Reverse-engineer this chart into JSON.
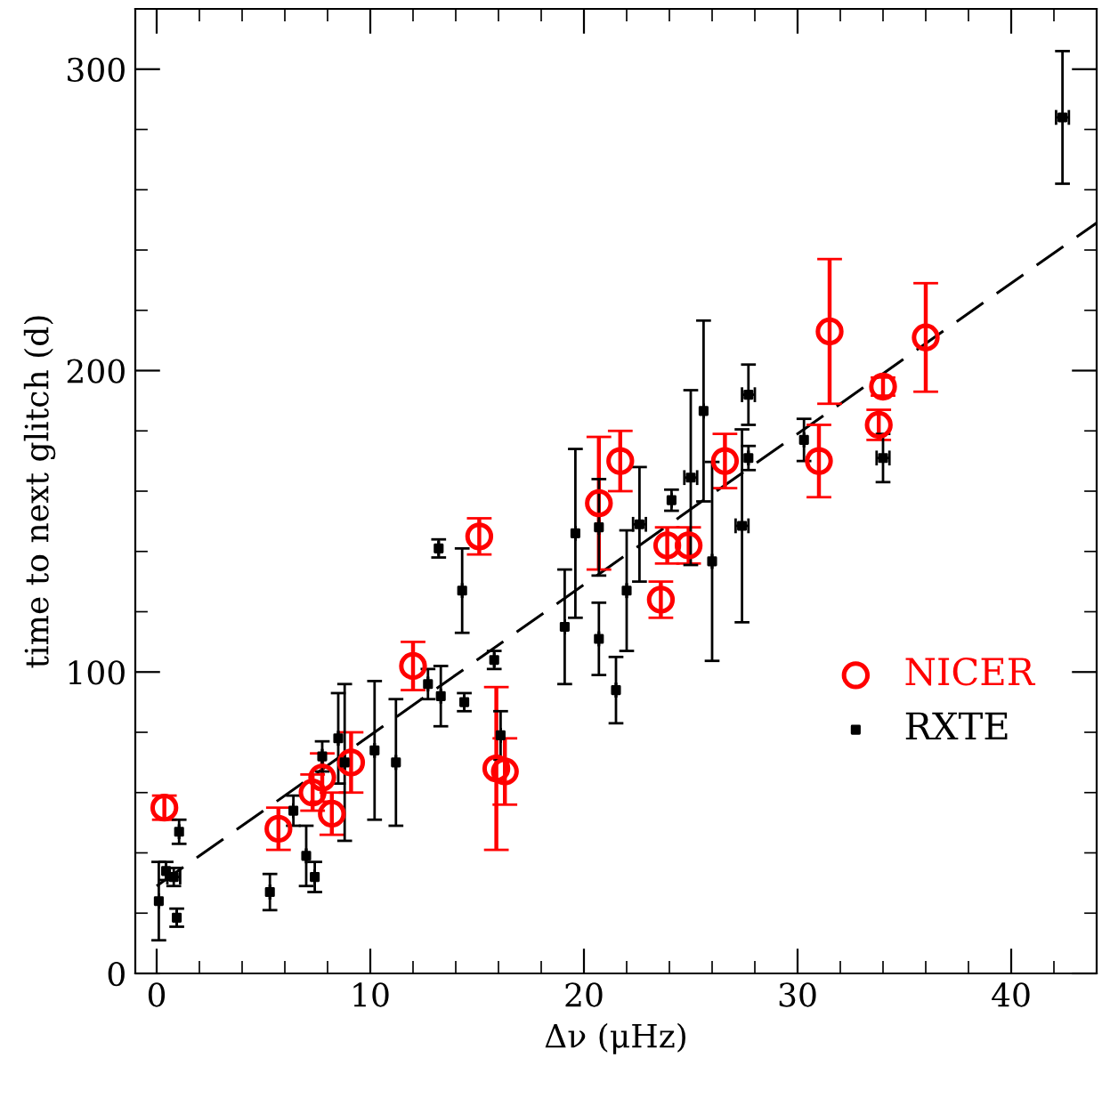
{
  "chart_data": {
    "type": "scatter",
    "xlabel": "Δν (μHz)",
    "ylabel": "time to next glitch (d)",
    "xlim": [
      -1,
      44
    ],
    "ylim": [
      0,
      320
    ],
    "xticks": [
      0,
      10,
      20,
      30,
      40
    ],
    "yticks": [
      0,
      100,
      200,
      300
    ],
    "grid": false,
    "legend": "lower right",
    "series": [
      {
        "name": "NICER",
        "color": "#ff0000",
        "marker": "circle",
        "x": [
          0.36,
          5.7,
          7.3,
          7.75,
          8.2,
          9.1,
          12.0,
          15.1,
          15.9,
          16.3,
          20.7,
          21.7,
          23.6,
          23.9,
          24.9,
          26.6,
          31.0,
          31.5,
          34.0,
          33.8,
          36.0
        ],
        "values": [
          55,
          48,
          60,
          65,
          53,
          70,
          102,
          145,
          68,
          67,
          156,
          170,
          124,
          142,
          142,
          170,
          170,
          213,
          194.7,
          182,
          211
        ],
        "errors": [
          4,
          7,
          6,
          8,
          7,
          10,
          8,
          6,
          27,
          11,
          22,
          10,
          6,
          6,
          6,
          9,
          12,
          24,
          3,
          5,
          18
        ]
      },
      {
        "name": "RXTE",
        "color": "#000000",
        "marker": "square",
        "x": [
          0.1,
          0.44,
          0.8,
          0.94,
          1.05,
          5.3,
          6.4,
          7.0,
          7.4,
          7.75,
          8.5,
          8.8,
          10.2,
          11.2,
          12.7,
          13.2,
          13.3,
          14.3,
          14.4,
          15.8,
          16.1,
          19.1,
          19.6,
          20.7,
          20.7,
          21.5,
          22.0,
          22.6,
          24.1,
          25.0,
          25.6,
          26.0,
          27.4,
          27.7,
          27.7,
          30.3,
          34.0,
          42.4
        ],
        "values": [
          24,
          34,
          32,
          18.5,
          47,
          27,
          54,
          39,
          32,
          72,
          78,
          70,
          74,
          70,
          96,
          141,
          92,
          127,
          90,
          104,
          79,
          115,
          146,
          111,
          148,
          94,
          127,
          149,
          157,
          164.5,
          186.6,
          136.7,
          148.5,
          171,
          192,
          177,
          171,
          284
        ],
        "errors": [
          13,
          3,
          3,
          3,
          4,
          6,
          5,
          10,
          5,
          5,
          15,
          26,
          23,
          21,
          5,
          3,
          10,
          14,
          3,
          3,
          8,
          19,
          28,
          12,
          16,
          11,
          20,
          19,
          3.5,
          29,
          30,
          33,
          32,
          4,
          10,
          7,
          8,
          22
        ],
        "xerrors": [
          null,
          null,
          0.3,
          null,
          null,
          null,
          null,
          null,
          null,
          null,
          null,
          null,
          null,
          null,
          null,
          null,
          null,
          null,
          null,
          null,
          null,
          null,
          null,
          null,
          null,
          null,
          null,
          0.3,
          null,
          0.3,
          null,
          null,
          0.3,
          null,
          0.3,
          null,
          0.3,
          0.3
        ]
      },
      {
        "type": "line",
        "color": "#000000",
        "line_style": "dashed",
        "marker": "none",
        "x": [
          0,
          44
        ],
        "values": [
          29,
          249
        ]
      }
    ]
  }
}
